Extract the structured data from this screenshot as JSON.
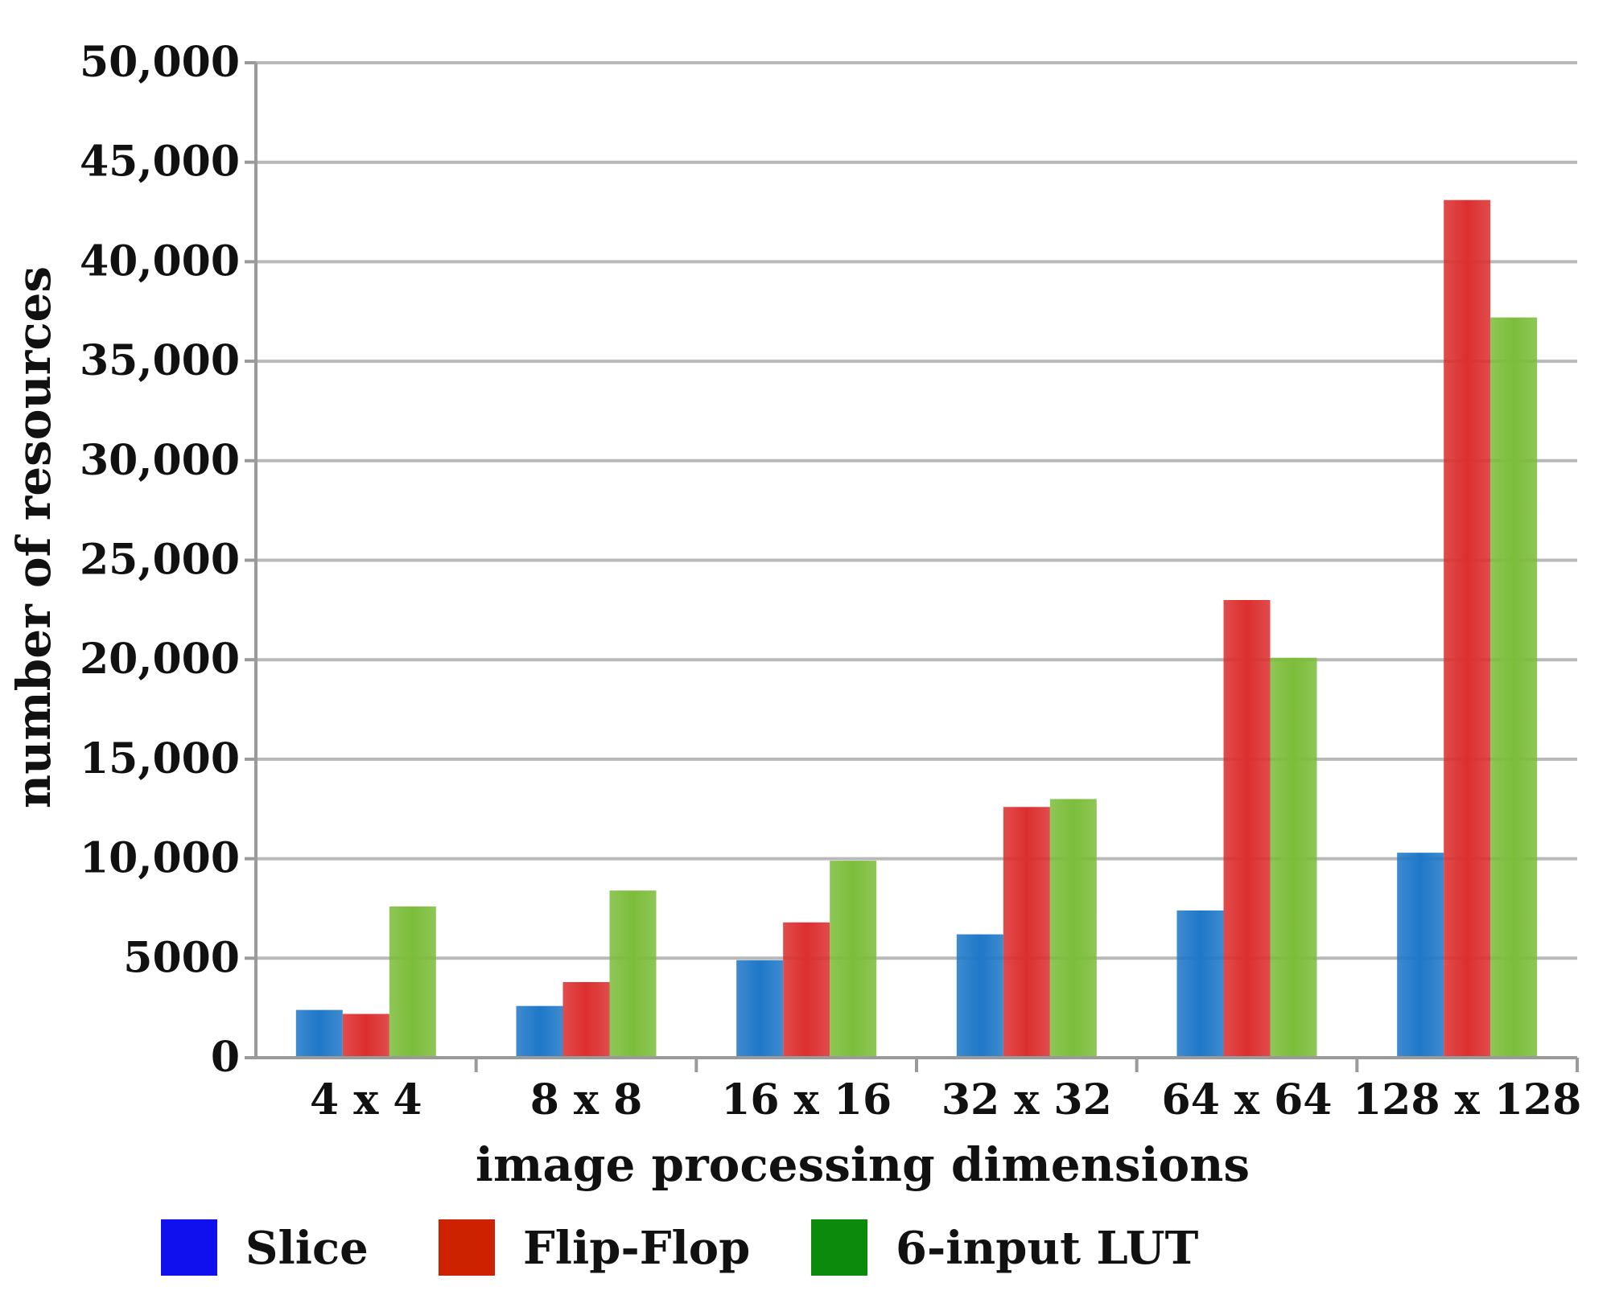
{
  "chart_data": {
    "type": "bar",
    "categories": [
      "4 x 4",
      "8 x 8",
      "16 x 16",
      "32 x 32",
      "64 x 64",
      "128 x 128"
    ],
    "series": [
      {
        "name": "Slice",
        "values": [
          2400,
          2600,
          4900,
          6200,
          7400,
          10300
        ]
      },
      {
        "name": "Flip-Flop",
        "values": [
          2200,
          3800,
          6800,
          12600,
          23000,
          43100
        ]
      },
      {
        "name": "6-input LUT",
        "values": [
          7600,
          8400,
          9900,
          13000,
          20100,
          37200
        ]
      }
    ],
    "series_colors": [
      "#1f78c8",
      "#dc2f2f",
      "#7cbd3b"
    ],
    "legend_swatch_colors": [
      "#1010ee",
      "#cc2200",
      "#0b8a0b"
    ],
    "yticks": [
      0,
      5000,
      10000,
      15000,
      20000,
      25000,
      30000,
      35000,
      40000,
      45000,
      50000
    ],
    "ytick_labels": [
      "0",
      "5000",
      "10,000",
      "15,000",
      "20,000",
      "25,000",
      "30,000",
      "35,000",
      "40,000",
      "45,000",
      "50,000"
    ],
    "ylim": [
      0,
      50000
    ],
    "xlabel": "image processing dimensions",
    "ylabel": "number of resources",
    "grid": true,
    "legend_position": "bottom"
  }
}
